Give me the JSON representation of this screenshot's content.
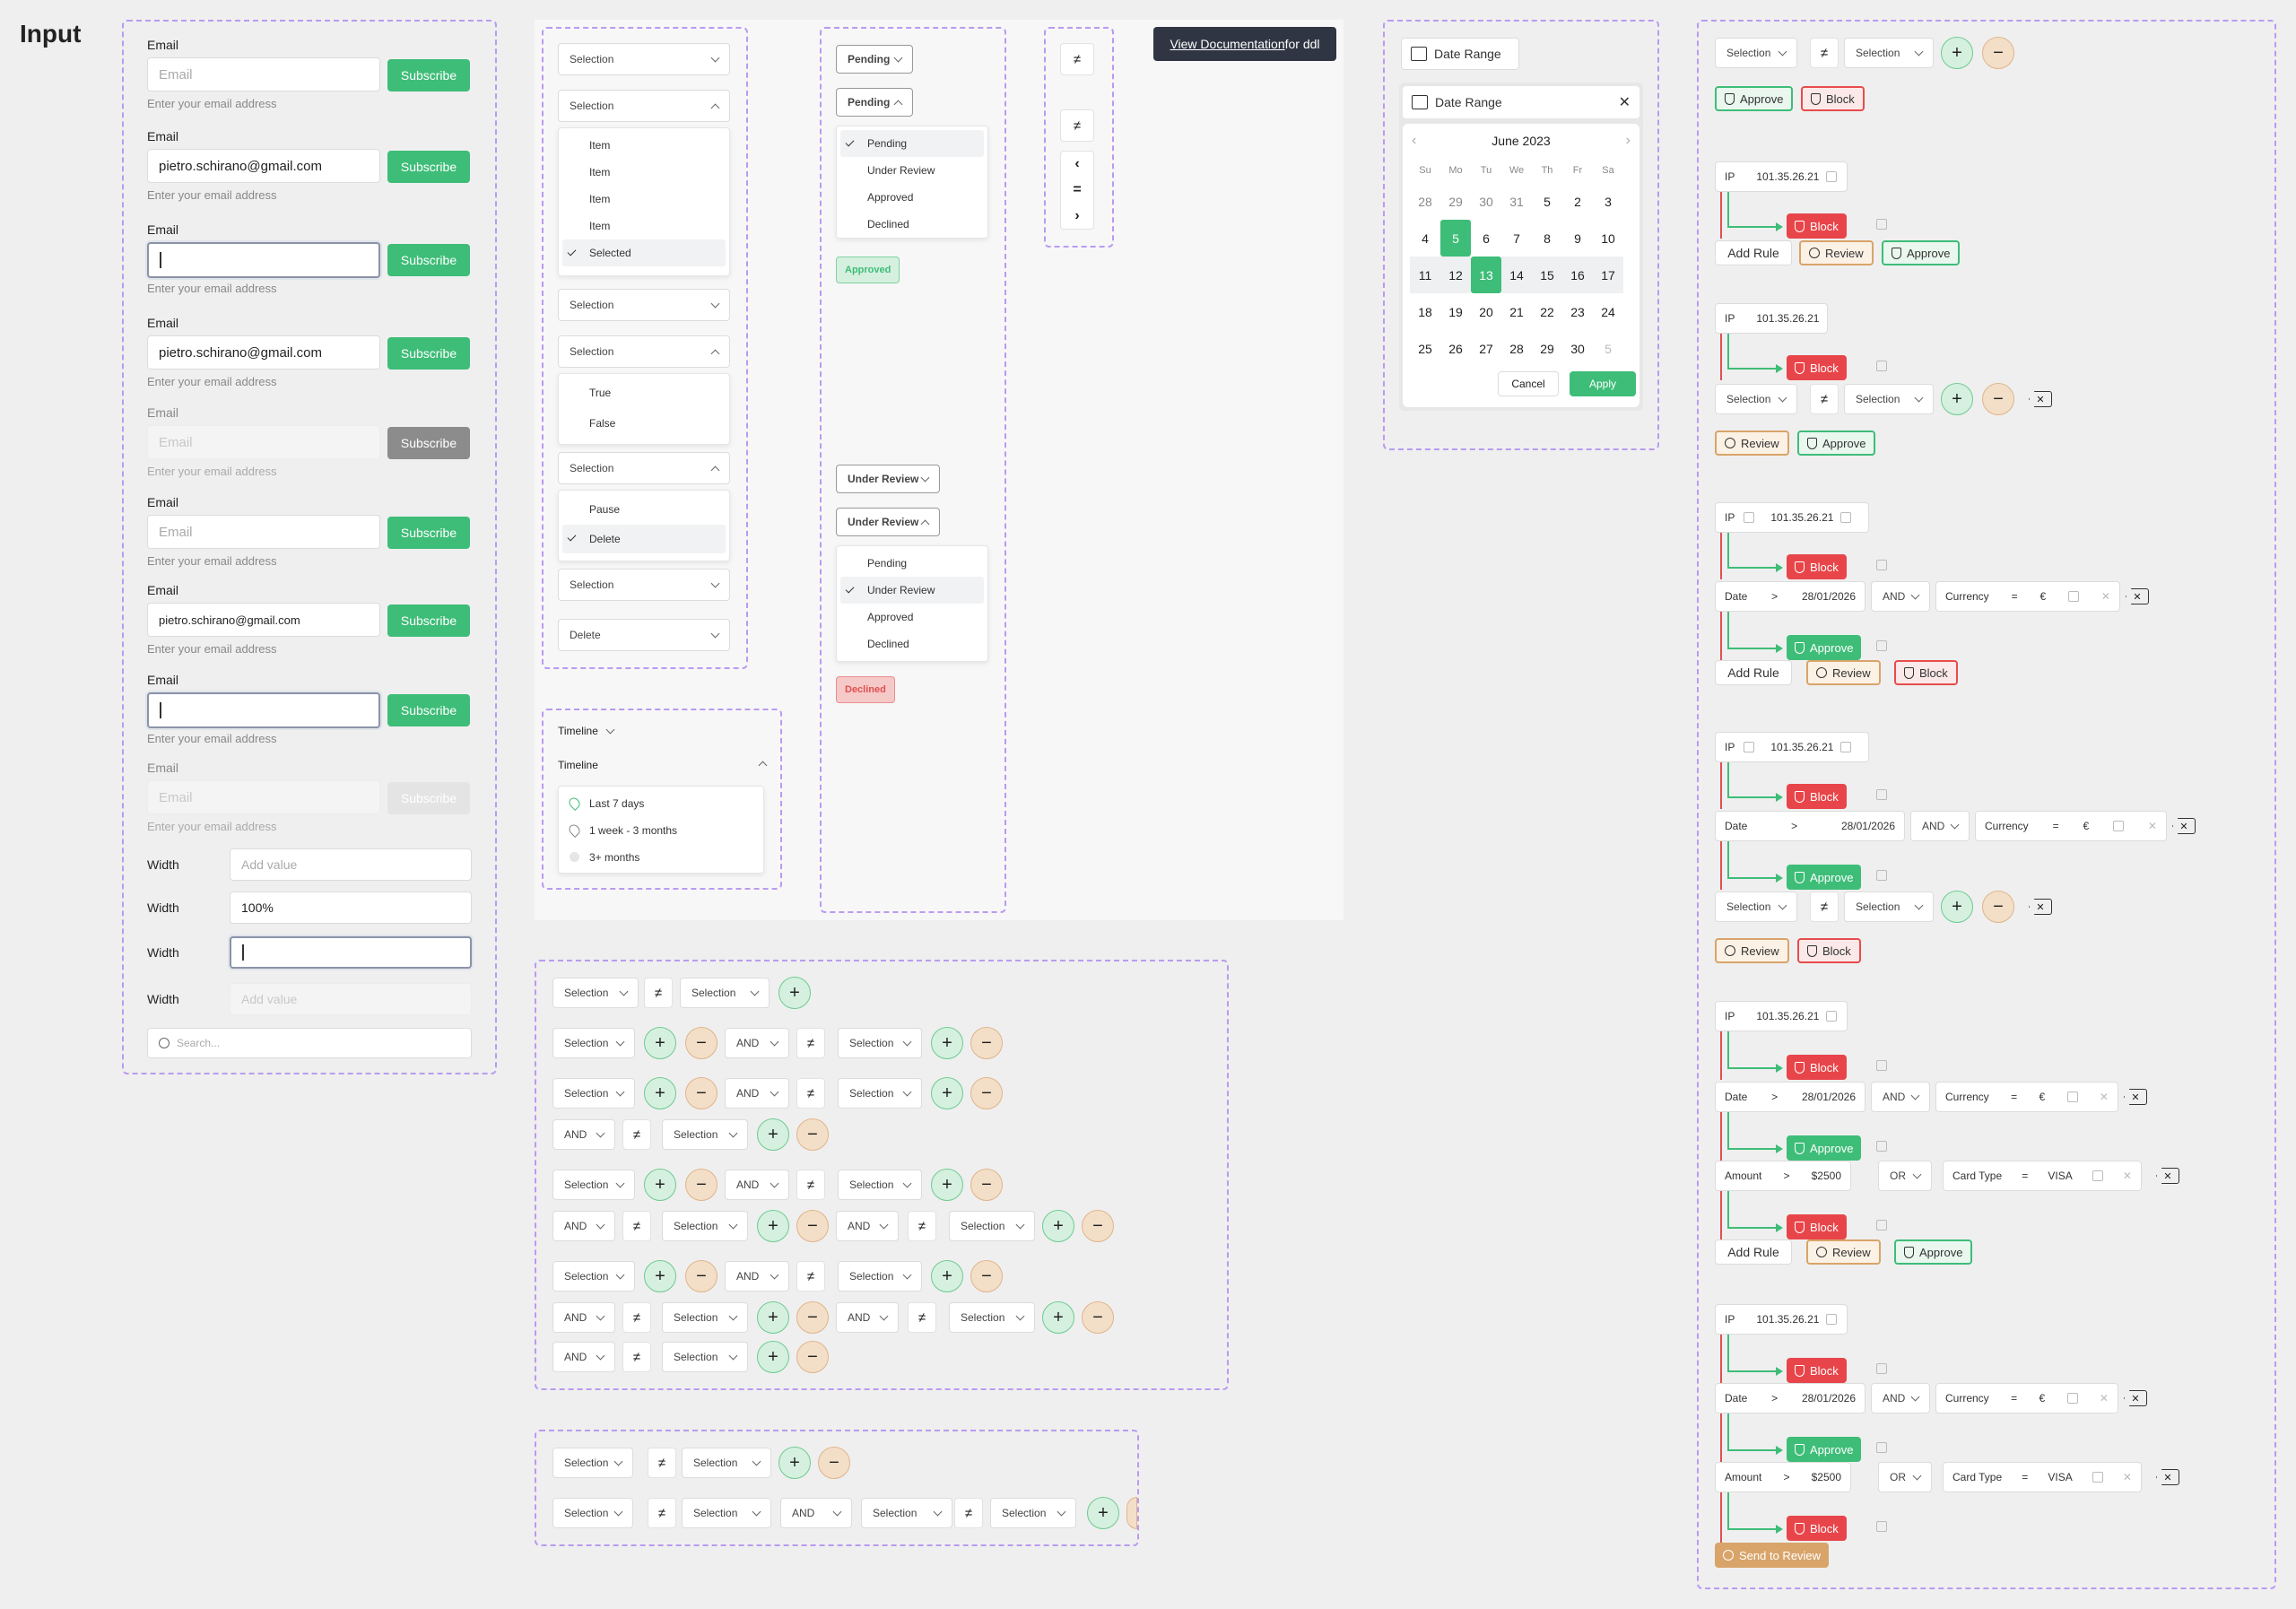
{
  "page_title": "Input",
  "inputs": {
    "email_label": "Email",
    "email_placeholder": "Email",
    "subscribe": "Subscribe",
    "hint": "Enter your email address",
    "email_value": "pietro.schirano@gmail.com",
    "width_label": "Width",
    "add_value": "Add value",
    "width_value": "100%",
    "search_placeholder": "Search..."
  },
  "dropdowns": {
    "selection": "Selection",
    "item": "Item",
    "selected": "Selected",
    "true": "True",
    "false": "False",
    "pause": "Pause",
    "delete": "Delete",
    "timeline": "Timeline",
    "last7": "Last 7 days",
    "week3": "1 week - 3 months",
    "m3": "3+ months"
  },
  "status": {
    "pending": "Pending",
    "under_review": "Under Review",
    "approved": "Approved",
    "declined": "Declined"
  },
  "doc_btn": {
    "link": "View Documentation",
    "rest": " for ddl"
  },
  "date": {
    "label": "Date Range",
    "month": "June 2023",
    "days": [
      "Su",
      "Mo",
      "Tu",
      "We",
      "Th",
      "Fr",
      "Sa"
    ],
    "cancel": "Cancel",
    "apply": "Apply",
    "rows": [
      [
        "28",
        "29",
        "30",
        "31",
        "5",
        "2",
        "3"
      ],
      [
        "4",
        "5",
        "6",
        "7",
        "8",
        "9",
        "10"
      ],
      [
        "11",
        "12",
        "13",
        "14",
        "15",
        "16",
        "17"
      ],
      [
        "18",
        "19",
        "20",
        "21",
        "22",
        "23",
        "24"
      ],
      [
        "25",
        "26",
        "27",
        "28",
        "29",
        "30",
        "5"
      ]
    ]
  },
  "rules": {
    "and": "AND",
    "or": "OR",
    "neq": "≠",
    "ip": "IP",
    "ip_val": "101.35.26.21",
    "block": "Block",
    "approve": "Approve",
    "review": "Review",
    "add_rule": "Add Rule",
    "date": "Date",
    "date_val": "28/01/2026",
    "currency": "Currency",
    "euro": "€",
    "eq": "=",
    "gt": ">",
    "amount": "Amount",
    "amount_val": "$2500",
    "card_type": "Card Type",
    "visa": "VISA",
    "send_review": "Send to Review"
  }
}
